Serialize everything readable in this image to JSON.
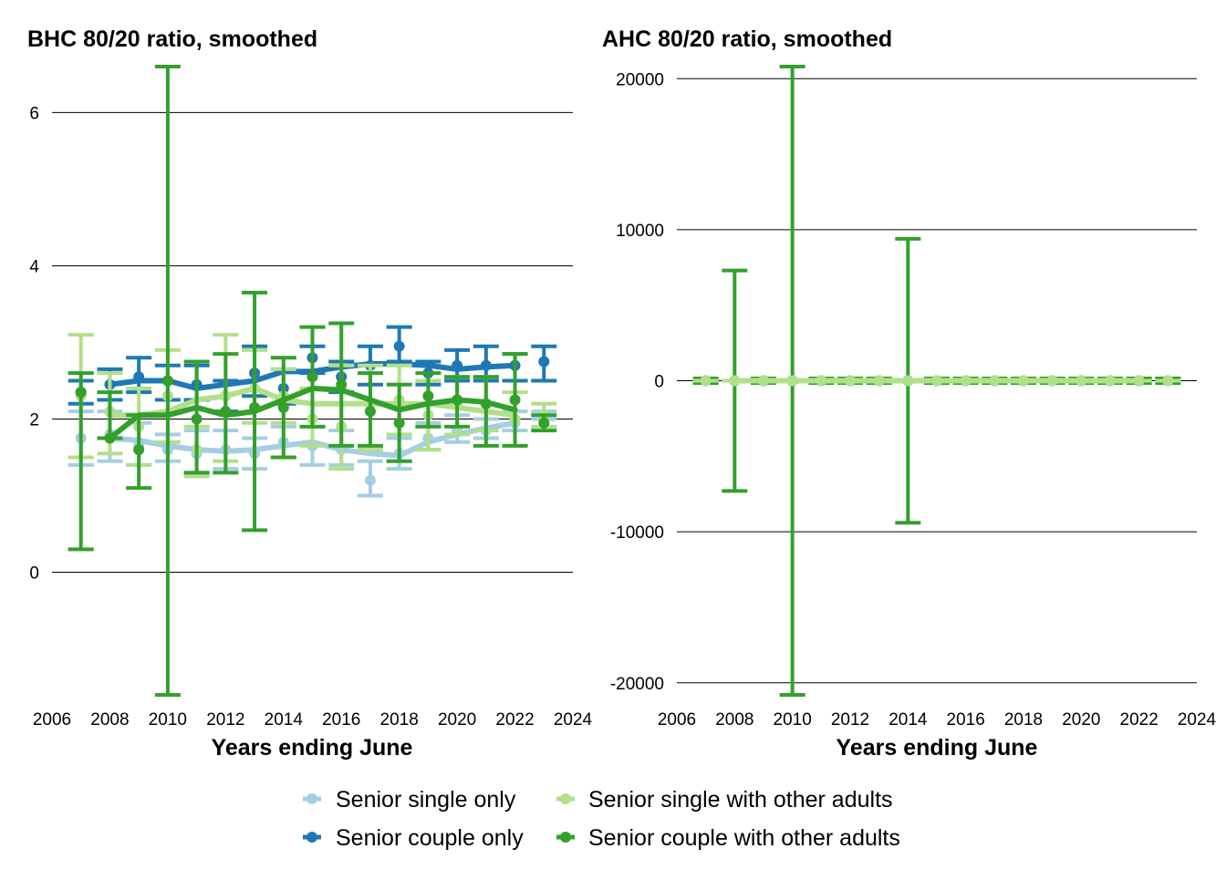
{
  "chart_data": [
    {
      "type": "line",
      "title": "BHC 80/20 ratio, smoothed",
      "xlabel": "Years ending June",
      "ylabel": "",
      "xlim": [
        2006,
        2024
      ],
      "ylim": [
        -1.6,
        6.6
      ],
      "xticks": [
        2006,
        2008,
        2010,
        2012,
        2014,
        2016,
        2018,
        2020,
        2022,
        2024
      ],
      "yticks": [
        0,
        2,
        4,
        6
      ],
      "grid": "horizontal",
      "series": [
        {
          "name": "Senior single only",
          "color": "#a6cee3",
          "x": [
            2007,
            2008,
            2009,
            2010,
            2011,
            2012,
            2013,
            2014,
            2015,
            2016,
            2017,
            2018,
            2019,
            2020,
            2021,
            2022,
            2023
          ],
          "points": [
            1.75,
            1.8,
            1.65,
            1.6,
            1.55,
            1.6,
            1.55,
            1.7,
            1.65,
            1.6,
            1.2,
            1.55,
            1.75,
            1.85,
            1.85,
            1.95,
            2.05
          ],
          "upper": [
            2.1,
            2.1,
            1.95,
            1.8,
            1.85,
            1.85,
            1.75,
            1.9,
            1.9,
            1.85,
            1.45,
            1.75,
            1.95,
            2.05,
            2.0,
            2.1,
            2.1
          ],
          "lower": [
            1.4,
            1.45,
            1.4,
            1.45,
            1.3,
            1.35,
            1.35,
            1.5,
            1.4,
            1.4,
            1.0,
            1.35,
            1.6,
            1.7,
            1.75,
            1.85,
            2.0
          ],
          "smoothed": [
            null,
            1.75,
            1.72,
            1.65,
            1.6,
            1.58,
            1.6,
            1.65,
            1.7,
            1.6,
            1.55,
            1.52,
            1.7,
            1.8,
            1.88,
            1.95,
            null
          ]
        },
        {
          "name": "Senior couple only",
          "color": "#1f78b4",
          "x": [
            2007,
            2008,
            2009,
            2010,
            2011,
            2012,
            2013,
            2014,
            2015,
            2016,
            2017,
            2018,
            2019,
            2020,
            2021,
            2022,
            2023
          ],
          "points": [
            2.35,
            2.45,
            2.55,
            2.5,
            2.45,
            2.3,
            2.6,
            2.4,
            2.8,
            2.55,
            2.7,
            2.95,
            2.6,
            2.7,
            2.7,
            2.7,
            2.75
          ],
          "upper": [
            2.5,
            2.65,
            2.8,
            2.7,
            2.7,
            2.5,
            2.95,
            2.65,
            2.95,
            2.75,
            2.95,
            3.2,
            2.75,
            2.9,
            2.95,
            2.85,
            2.95
          ],
          "lower": [
            2.2,
            2.25,
            2.35,
            2.25,
            2.25,
            2.1,
            2.3,
            2.2,
            2.6,
            2.35,
            2.45,
            2.75,
            2.45,
            2.5,
            2.5,
            2.5,
            2.5
          ],
          "smoothed": [
            null,
            2.45,
            2.5,
            2.5,
            2.4,
            2.45,
            2.5,
            2.62,
            2.62,
            2.68,
            2.72,
            2.72,
            2.7,
            2.65,
            2.68,
            2.7,
            null
          ]
        },
        {
          "name": "Senior single with other adults",
          "color": "#b2df8a",
          "x": [
            2007,
            2008,
            2009,
            2010,
            2011,
            2012,
            2013,
            2014,
            2015,
            2016,
            2017,
            2018,
            2019,
            2020,
            2021,
            2022,
            2023
          ],
          "points": [
            2.3,
            2.1,
            1.9,
            2.3,
            1.6,
            2.3,
            2.4,
            2.3,
            2.0,
            1.9,
            2.2,
            2.25,
            2.05,
            2.2,
            2.2,
            2.0,
            2.05
          ],
          "upper": [
            3.1,
            2.6,
            2.4,
            2.9,
            1.9,
            3.1,
            2.9,
            2.65,
            2.4,
            2.7,
            2.7,
            2.7,
            2.5,
            2.55,
            2.55,
            2.35,
            2.2
          ],
          "lower": [
            1.5,
            1.55,
            1.4,
            1.7,
            1.25,
            1.45,
            1.95,
            1.95,
            1.65,
            1.35,
            1.6,
            1.8,
            1.6,
            1.8,
            1.85,
            1.65,
            1.9
          ],
          "smoothed": [
            null,
            2.05,
            2.05,
            2.1,
            2.25,
            2.3,
            2.4,
            2.25,
            2.2,
            2.2,
            2.2,
            2.2,
            2.2,
            2.15,
            2.1,
            2.05,
            null
          ]
        },
        {
          "name": "Senior couple with other adults",
          "color": "#33a02c",
          "x": [
            2007,
            2008,
            2009,
            2010,
            2011,
            2012,
            2013,
            2014,
            2015,
            2016,
            2017,
            2018,
            2019,
            2020,
            2021,
            2022,
            2023
          ],
          "points": [
            2.35,
            1.75,
            1.6,
            2.5,
            2.0,
            2.1,
            2.15,
            2.15,
            2.55,
            2.45,
            2.1,
            1.95,
            2.3,
            2.25,
            2.2,
            2.25,
            1.95
          ],
          "upper": [
            2.6,
            2.35,
            2.05,
            6.6,
            2.75,
            2.85,
            3.65,
            2.8,
            3.2,
            3.25,
            2.6,
            2.45,
            2.6,
            2.55,
            2.55,
            2.85,
            2.05
          ],
          "lower": [
            0.3,
            1.75,
            1.1,
            -1.6,
            1.3,
            1.3,
            0.55,
            1.5,
            1.9,
            1.65,
            1.65,
            1.45,
            1.9,
            1.9,
            1.65,
            1.65,
            1.85
          ],
          "smoothed": [
            null,
            1.75,
            2.05,
            2.05,
            2.15,
            2.05,
            2.1,
            2.25,
            2.4,
            2.38,
            2.25,
            2.12,
            2.2,
            2.25,
            2.22,
            2.12,
            null
          ]
        }
      ]
    },
    {
      "type": "line",
      "title": "AHC 80/20 ratio, smoothed",
      "xlabel": "Years ending June",
      "ylabel": "",
      "xlim": [
        2006,
        2024
      ],
      "ylim": [
        -20800,
        20800
      ],
      "xticks": [
        2006,
        2008,
        2010,
        2012,
        2014,
        2016,
        2018,
        2020,
        2022,
        2024
      ],
      "yticks": [
        -20000,
        -10000,
        0,
        10000,
        20000
      ],
      "grid": "horizontal",
      "series": [
        {
          "name": "Senior single only",
          "color": "#a6cee3",
          "x": [
            2007,
            2008,
            2009,
            2010,
            2011,
            2012,
            2013,
            2014,
            2015,
            2016,
            2017,
            2018,
            2019,
            2020,
            2021,
            2022,
            2023
          ],
          "points": [
            0,
            0,
            0,
            0,
            0,
            0,
            0,
            0,
            0,
            0,
            0,
            0,
            0,
            0,
            0,
            0,
            0
          ],
          "upper": [
            0,
            0,
            0,
            0,
            0,
            0,
            0,
            0,
            0,
            0,
            0,
            0,
            0,
            0,
            0,
            0,
            0
          ],
          "lower": [
            0,
            0,
            0,
            0,
            0,
            0,
            0,
            0,
            0,
            0,
            0,
            0,
            0,
            0,
            0,
            0,
            0
          ],
          "smoothed": [
            null,
            0,
            0,
            0,
            0,
            0,
            0,
            0,
            0,
            0,
            0,
            0,
            0,
            0,
            0,
            0,
            null
          ]
        },
        {
          "name": "Senior couple only",
          "color": "#1f78b4",
          "x": [
            2007,
            2008,
            2009,
            2010,
            2011,
            2012,
            2013,
            2014,
            2015,
            2016,
            2017,
            2018,
            2019,
            2020,
            2021,
            2022,
            2023
          ],
          "points": [
            0,
            0,
            0,
            0,
            0,
            0,
            0,
            0,
            0,
            0,
            0,
            0,
            0,
            0,
            0,
            0,
            0
          ],
          "upper": [
            0,
            0,
            0,
            0,
            0,
            0,
            0,
            0,
            0,
            0,
            0,
            0,
            0,
            0,
            0,
            0,
            0
          ],
          "lower": [
            0,
            0,
            0,
            0,
            0,
            0,
            0,
            0,
            0,
            0,
            0,
            0,
            0,
            0,
            0,
            0,
            0
          ],
          "smoothed": [
            null,
            0,
            0,
            0,
            0,
            0,
            0,
            0,
            0,
            0,
            0,
            0,
            0,
            0,
            0,
            0,
            null
          ]
        },
        {
          "name": "Senior couple with other adults",
          "color": "#33a02c",
          "x": [
            2007,
            2008,
            2009,
            2010,
            2011,
            2012,
            2013,
            2014,
            2015,
            2016,
            2017,
            2018,
            2019,
            2020,
            2021,
            2022,
            2023
          ],
          "points": [
            0,
            0,
            0,
            0,
            0,
            0,
            0,
            0,
            0,
            0,
            0,
            0,
            0,
            0,
            0,
            0,
            0
          ],
          "upper": [
            150,
            7300,
            150,
            20800,
            150,
            150,
            150,
            9400,
            150,
            150,
            150,
            150,
            150,
            150,
            150,
            150,
            150
          ],
          "lower": [
            -150,
            -7300,
            -150,
            -20800,
            -150,
            -150,
            -150,
            -9400,
            -150,
            -150,
            -150,
            -150,
            -150,
            -150,
            -150,
            -150,
            -150
          ],
          "smoothed": [
            null,
            0,
            0,
            0,
            0,
            0,
            0,
            0,
            0,
            0,
            0,
            0,
            0,
            0,
            0,
            0,
            null
          ]
        },
        {
          "name": "Senior single with other adults",
          "color": "#b2df8a",
          "x": [
            2007,
            2008,
            2009,
            2010,
            2011,
            2012,
            2013,
            2014,
            2015,
            2016,
            2017,
            2018,
            2019,
            2020,
            2021,
            2022,
            2023
          ],
          "points": [
            0,
            0,
            0,
            0,
            0,
            0,
            0,
            0,
            0,
            0,
            0,
            0,
            0,
            0,
            0,
            0,
            0
          ],
          "upper": [
            0,
            0,
            0,
            0,
            0,
            0,
            0,
            0,
            0,
            0,
            0,
            0,
            0,
            0,
            0,
            0,
            0
          ],
          "lower": [
            0,
            0,
            0,
            0,
            0,
            0,
            0,
            0,
            0,
            0,
            0,
            0,
            0,
            0,
            0,
            0,
            0
          ],
          "smoothed": [
            null,
            0,
            0,
            0,
            0,
            0,
            0,
            0,
            0,
            0,
            0,
            0,
            0,
            0,
            0,
            0,
            null
          ]
        }
      ]
    }
  ],
  "legend": {
    "placement": "bottom",
    "items": [
      {
        "label": "Senior single only",
        "color": "#a6cee3"
      },
      {
        "label": "Senior couple only",
        "color": "#1f78b4"
      },
      {
        "label": "Senior single with other adults",
        "color": "#b2df8a"
      },
      {
        "label": "Senior couple with other adults",
        "color": "#33a02c"
      }
    ]
  }
}
